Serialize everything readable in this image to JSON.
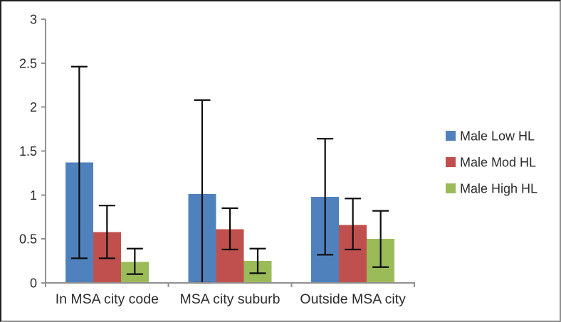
{
  "figure": {
    "background": "#ffffff",
    "border_color_dark": "#1f1f1f",
    "border_color_light": "#8f8f8f"
  },
  "chart_data": {
    "type": "bar",
    "title": "",
    "xlabel": "",
    "ylabel": "",
    "categories": [
      "In MSA city code",
      "MSA city suburb",
      "Outside MSA city"
    ],
    "series": [
      {
        "name": "Male Low HL",
        "color": "#4f81bd",
        "values": [
          1.37,
          1.01,
          0.98
        ],
        "error_low": [
          0.28,
          0.0,
          0.32
        ],
        "error_high": [
          2.46,
          2.08,
          1.64
        ]
      },
      {
        "name": "Male Mod HL",
        "color": "#c0504d",
        "values": [
          0.58,
          0.61,
          0.66
        ],
        "error_low": [
          0.28,
          0.38,
          0.38
        ],
        "error_high": [
          0.88,
          0.85,
          0.96
        ]
      },
      {
        "name": "Male High HL",
        "color": "#9bbb59",
        "values": [
          0.24,
          0.25,
          0.5
        ],
        "error_low": [
          0.1,
          0.11,
          0.18
        ],
        "error_high": [
          0.39,
          0.39,
          0.82
        ]
      }
    ],
    "ylim": [
      0,
      3
    ],
    "ytick_step": 0.5,
    "yticks": [
      "0",
      "0.5",
      "1",
      "1.5",
      "2",
      "2.5",
      "3"
    ],
    "grid": false,
    "legend_position": "right",
    "axis_color": "#909090",
    "error_bar_color": "#0d0d0d",
    "tick_label_color": "#2b2b2b"
  }
}
